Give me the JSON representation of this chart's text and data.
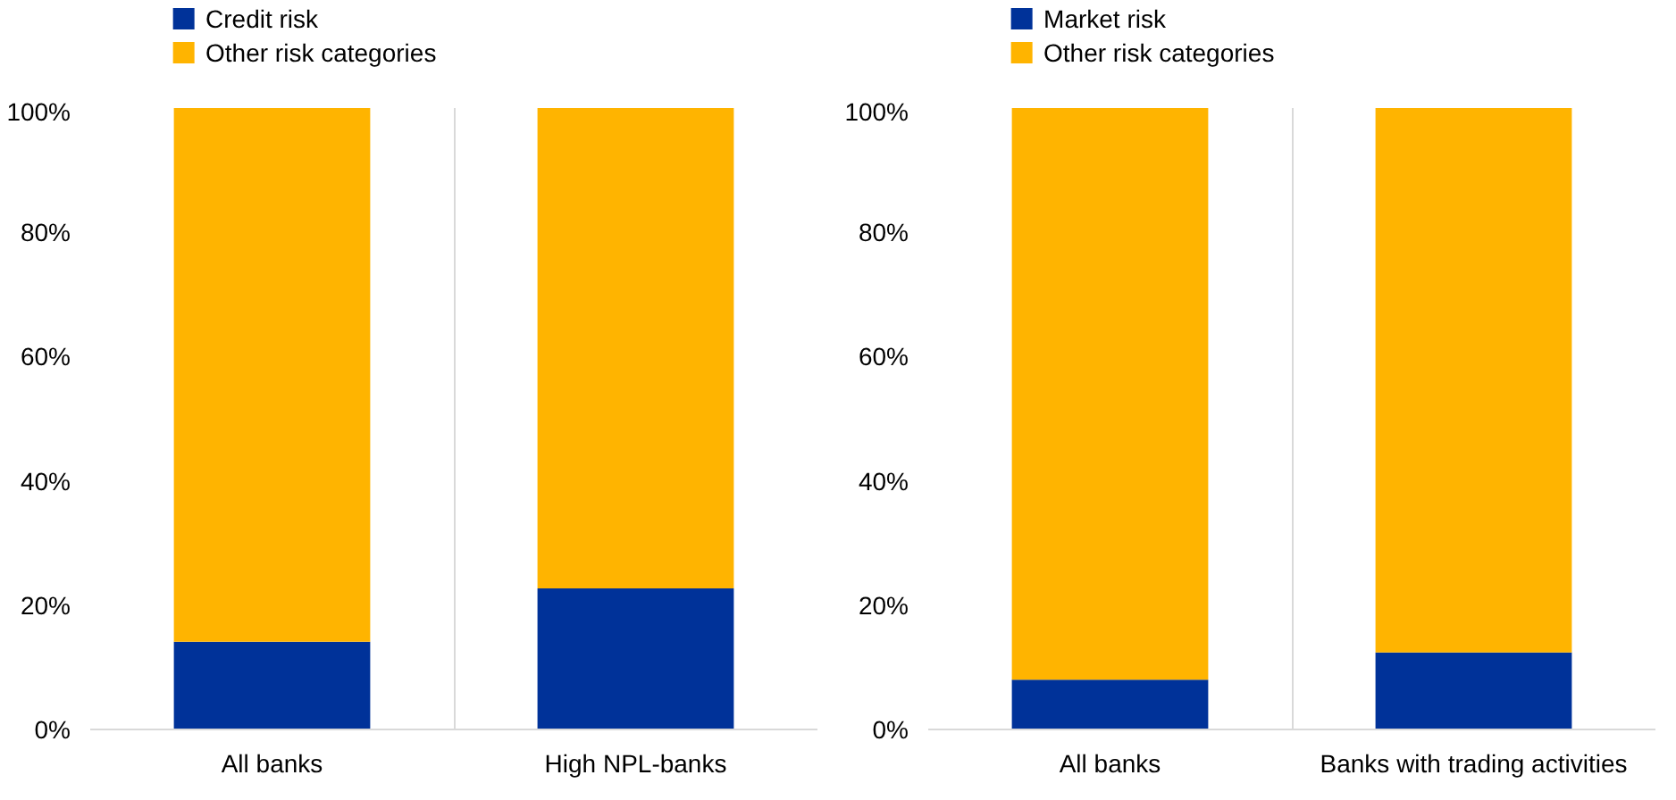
{
  "chart_data": [
    {
      "type": "bar",
      "stacked": true,
      "categories": [
        "All banks",
        "High NPL-banks"
      ],
      "series": [
        {
          "name": "Credit risk",
          "color": "#003299",
          "values": [
            14.1,
            22.7
          ]
        },
        {
          "name": "Other risk categories",
          "color": "#ffb400",
          "values": [
            85.9,
            77.3
          ]
        }
      ],
      "ylim": [
        0,
        100
      ],
      "yticks": [
        {
          "value": 0,
          "label": "0%"
        },
        {
          "value": 20,
          "label": "20%"
        },
        {
          "value": 40,
          "label": "40%"
        },
        {
          "value": 60,
          "label": "60%"
        },
        {
          "value": 80,
          "label": "80%"
        },
        {
          "value": 100,
          "label": "100%"
        }
      ],
      "grid": "x",
      "legend": "top left"
    },
    {
      "type": "bar",
      "stacked": true,
      "categories": [
        "All banks",
        "Banks with trading activities"
      ],
      "series": [
        {
          "name": "Market risk",
          "color": "#003299",
          "values": [
            8.0,
            12.4
          ]
        },
        {
          "name": "Other risk categories",
          "color": "#ffb400",
          "values": [
            92.0,
            87.6
          ]
        }
      ],
      "ylim": [
        0,
        100
      ],
      "yticks": [
        {
          "value": 0,
          "label": "0%"
        },
        {
          "value": 20,
          "label": "20%"
        },
        {
          "value": 40,
          "label": "40%"
        },
        {
          "value": 60,
          "label": "60%"
        },
        {
          "value": 80,
          "label": "80%"
        },
        {
          "value": 100,
          "label": "100%"
        }
      ],
      "grid": "x",
      "legend": "top left"
    }
  ]
}
